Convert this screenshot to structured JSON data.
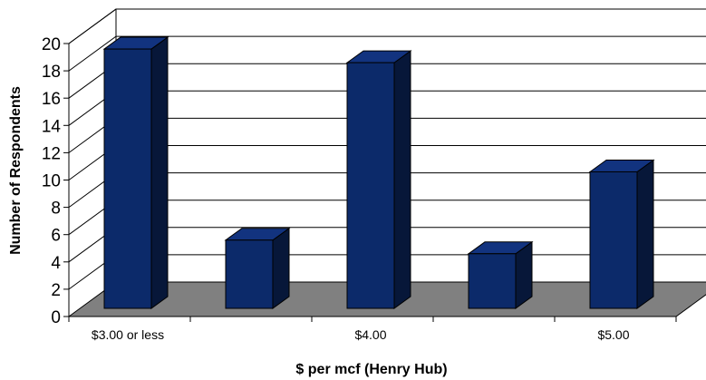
{
  "chart_data": {
    "type": "bar",
    "title": "",
    "xlabel": "$ per mcf (Henry Hub)",
    "ylabel": "Number of Respondents",
    "ylim": [
      0,
      20
    ],
    "yticks": [
      0,
      2,
      4,
      6,
      8,
      10,
      12,
      14,
      16,
      18,
      20
    ],
    "categories": [
      "$3.00 or less",
      "",
      "$4.00",
      "",
      "$5.00"
    ],
    "values": [
      19,
      5,
      18,
      4,
      10
    ],
    "grid": true,
    "legend": "none",
    "three_d": true,
    "colors": {
      "bar_front": "#0c2a6a",
      "bar_side": "#071739",
      "bar_top": "#12337f",
      "floor": "#808080",
      "gridline": "#000000"
    }
  }
}
